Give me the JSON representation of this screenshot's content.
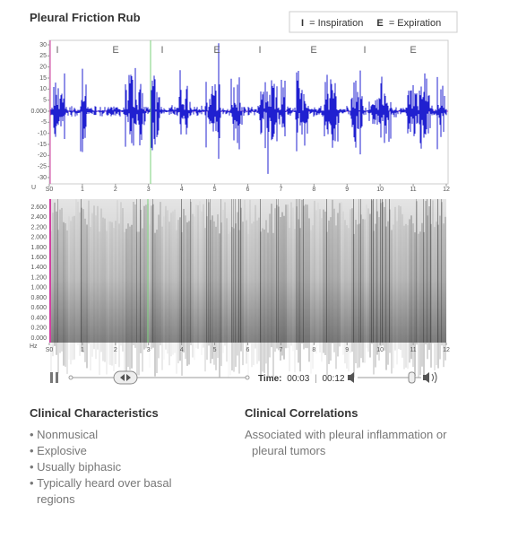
{
  "header": {
    "title": "Pleural Friction Rub",
    "legend": [
      {
        "key": "I",
        "label": "= Inspiration"
      },
      {
        "key": "E",
        "label": "= Expiration"
      }
    ]
  },
  "waveform": {
    "phase_markers": [
      "I",
      "E",
      "I",
      "E",
      "I",
      "E",
      "I",
      "E"
    ],
    "unit": "U",
    "yticks": [
      "30",
      "25",
      "20",
      "15",
      "10",
      "5",
      "0.000",
      "-5",
      "-10",
      "-15",
      "-20",
      "-25",
      "-30"
    ],
    "xticks": [
      "S0",
      "1",
      "2",
      "3",
      "4",
      "5",
      "6",
      "7",
      "8",
      "9",
      "10",
      "11",
      "12"
    ]
  },
  "spectrogram": {
    "unit": "Hz",
    "yticks": [
      "2.600",
      "2.400",
      "2.200",
      "2.000",
      "1.800",
      "1.600",
      "1.400",
      "1.200",
      "1.000",
      "0.800",
      "0.600",
      "0.400",
      "0.200",
      "0.000"
    ],
    "xticks": [
      "S0",
      "1",
      "2",
      "3",
      "4",
      "5",
      "6",
      "7",
      "8",
      "9",
      "10",
      "11",
      "12"
    ]
  },
  "player": {
    "time_label": "Time:",
    "current": "00:03",
    "separator": "|",
    "duration": "00:12"
  },
  "characteristics": {
    "title": "Clinical Characteristics",
    "items": [
      "Nonmusical",
      "Explosive",
      "Usually biphasic",
      "Typically heard over basal regions"
    ]
  },
  "correlations": {
    "title": "Clinical Correlations",
    "text": "Associated with pleural inflammation or pleural tumors"
  }
}
